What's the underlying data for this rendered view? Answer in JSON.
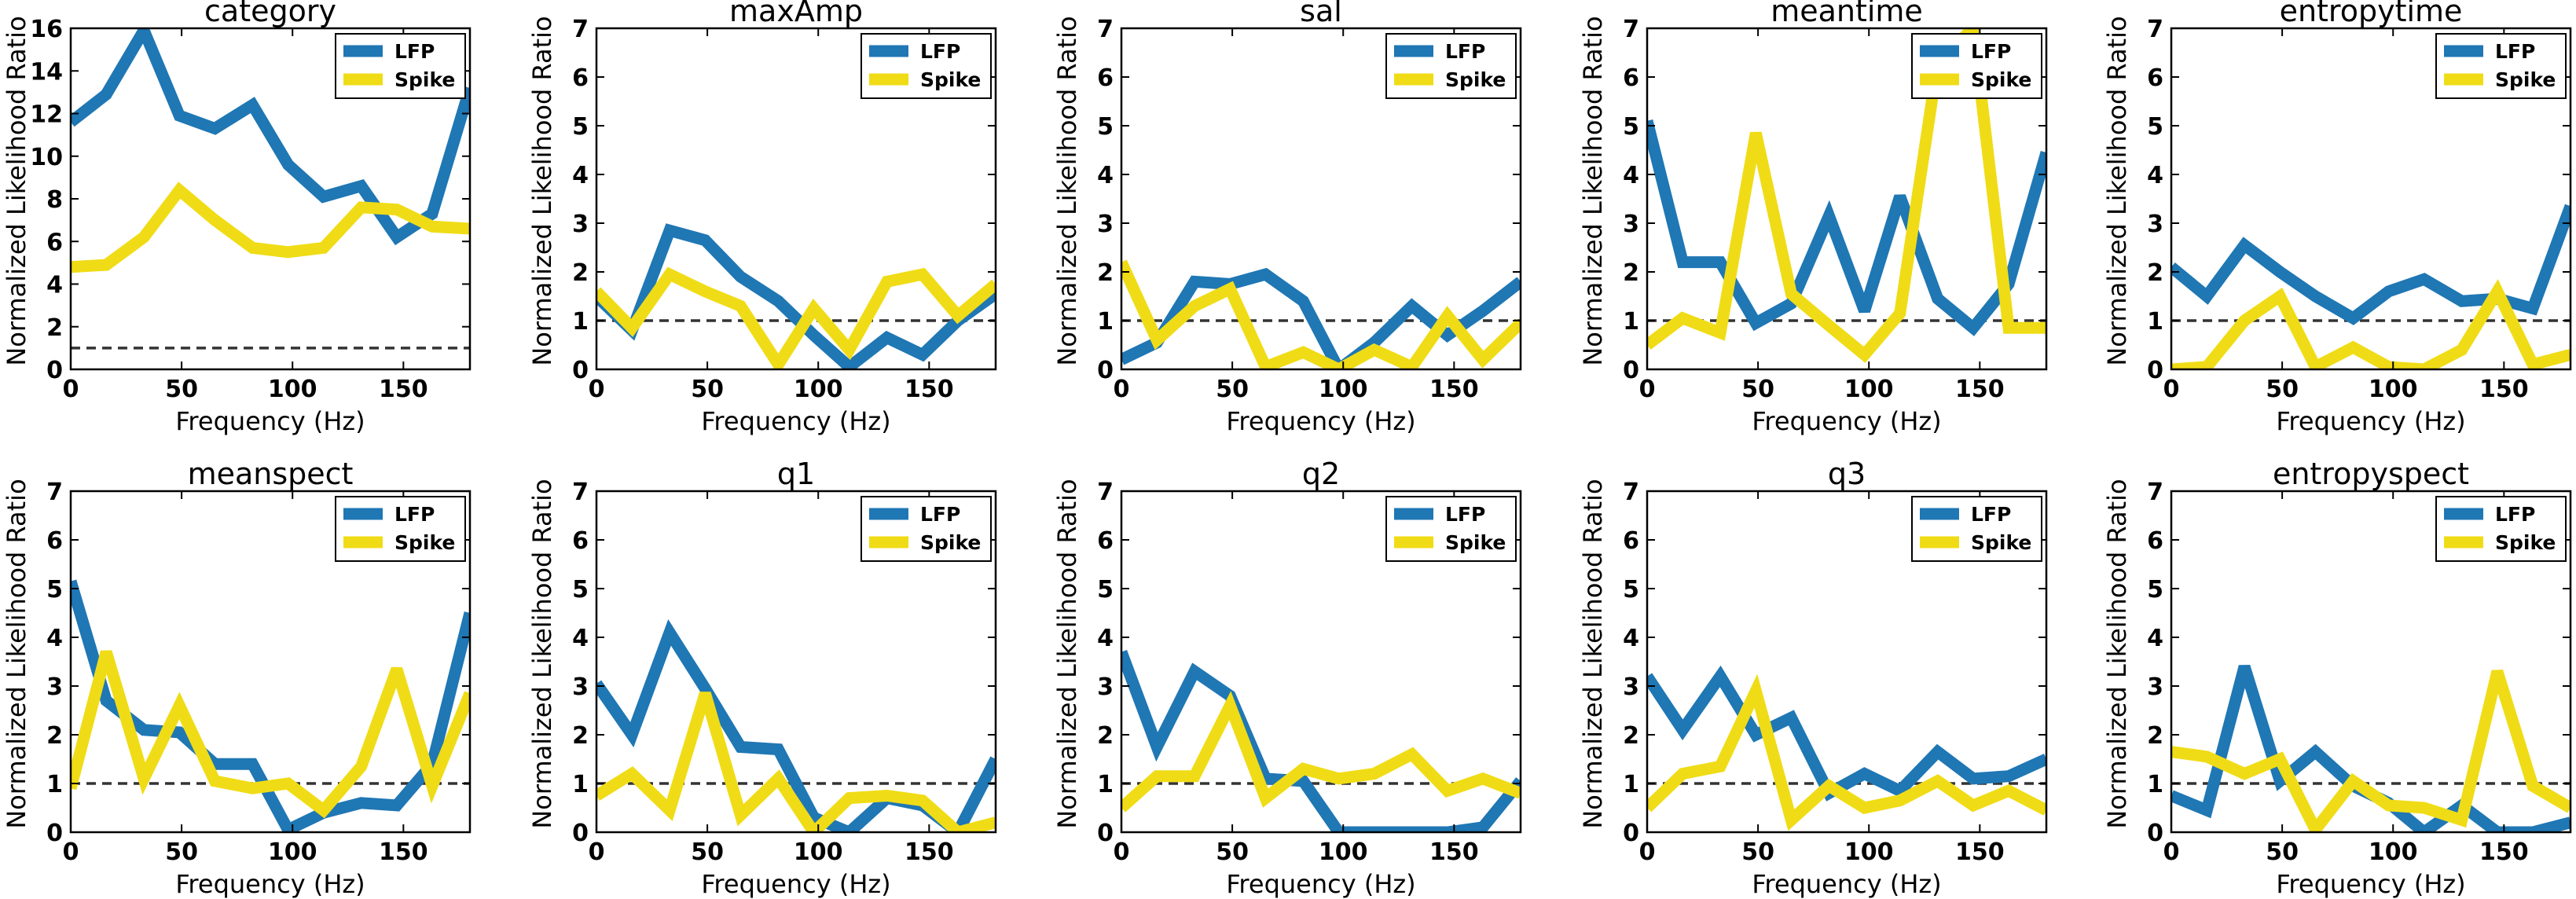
{
  "figure": {
    "ylabel": "Normalized Likelihood Ratio",
    "xlabel": "Frequency (Hz)",
    "reference_line": {
      "y": 1,
      "style": "dashed",
      "color": "#333333"
    },
    "series_styles": [
      {
        "name": "LFP",
        "color": "#1f77b4"
      },
      {
        "name": "Spike",
        "color": "#f0dc16"
      }
    ],
    "legend_placement": "top-right"
  },
  "chart_data": [
    {
      "type": "line",
      "title": "category",
      "xlabel": "Frequency (Hz)",
      "ylabel": "Normalized Likelihood Ratio",
      "xlim": [
        0,
        180
      ],
      "ylim": [
        0,
        16
      ],
      "xticks": [
        0,
        50,
        100,
        150
      ],
      "yticks": [
        0,
        2,
        4,
        6,
        8,
        10,
        12,
        14,
        16
      ],
      "x": [
        0,
        16,
        33,
        49,
        65,
        82,
        98,
        114,
        131,
        147,
        163,
        180
      ],
      "series": [
        {
          "name": "LFP",
          "values": [
            11.6,
            12.9,
            15.9,
            11.9,
            11.3,
            12.4,
            9.6,
            8.1,
            8.6,
            6.2,
            7.3,
            13.2
          ]
        },
        {
          "name": "Spike",
          "values": [
            4.8,
            4.9,
            6.2,
            8.4,
            7.0,
            5.7,
            5.5,
            5.7,
            7.6,
            7.5,
            6.7,
            6.6
          ]
        }
      ],
      "grid": false,
      "legend": "top-right"
    },
    {
      "type": "line",
      "title": "maxAmp",
      "xlabel": "Frequency (Hz)",
      "ylabel": "Normalized Likelihood Ratio",
      "xlim": [
        0,
        180
      ],
      "ylim": [
        0,
        7
      ],
      "xticks": [
        0,
        50,
        100,
        150
      ],
      "yticks": [
        0,
        1,
        2,
        3,
        4,
        5,
        6,
        7
      ],
      "x": [
        0,
        16,
        33,
        49,
        65,
        82,
        98,
        114,
        131,
        147,
        163,
        180
      ],
      "series": [
        {
          "name": "LFP",
          "values": [
            1.5,
            0.8,
            2.85,
            2.65,
            1.9,
            1.4,
            0.7,
            0.05,
            0.65,
            0.3,
            1.0,
            1.55
          ]
        },
        {
          "name": "Spike",
          "values": [
            1.6,
            0.85,
            1.95,
            1.6,
            1.3,
            0.1,
            1.25,
            0.4,
            1.8,
            1.95,
            1.1,
            1.75
          ]
        }
      ],
      "grid": false,
      "legend": "top-right"
    },
    {
      "type": "line",
      "title": "sal",
      "xlabel": "Frequency (Hz)",
      "ylabel": "Normalized Likelihood Ratio",
      "xlim": [
        0,
        180
      ],
      "ylim": [
        0,
        7
      ],
      "xticks": [
        0,
        50,
        100,
        150
      ],
      "yticks": [
        0,
        1,
        2,
        3,
        4,
        5,
        6,
        7
      ],
      "x": [
        0,
        16,
        33,
        49,
        65,
        82,
        98,
        114,
        131,
        147,
        163,
        180
      ],
      "series": [
        {
          "name": "LFP",
          "values": [
            0.2,
            0.55,
            1.8,
            1.75,
            1.95,
            1.4,
            0.0,
            0.55,
            1.3,
            0.7,
            1.2,
            1.8
          ]
        },
        {
          "name": "Spike",
          "values": [
            2.2,
            0.6,
            1.3,
            1.65,
            0.05,
            0.35,
            0.0,
            0.4,
            0.05,
            1.1,
            0.2,
            0.95
          ]
        }
      ],
      "grid": false,
      "legend": "top-right"
    },
    {
      "type": "line",
      "title": "meantime",
      "xlabel": "Frequency (Hz)",
      "ylabel": "Normalized Likelihood Ratio",
      "xlim": [
        0,
        180
      ],
      "ylim": [
        0,
        7
      ],
      "xticks": [
        0,
        50,
        100,
        150
      ],
      "yticks": [
        0,
        1,
        2,
        3,
        4,
        5,
        6,
        7
      ],
      "x": [
        0,
        16,
        33,
        49,
        65,
        82,
        98,
        114,
        131,
        147,
        163,
        180
      ],
      "series": [
        {
          "name": "LFP",
          "values": [
            5.1,
            2.2,
            2.2,
            0.95,
            1.35,
            3.15,
            1.2,
            3.55,
            1.45,
            0.85,
            1.75,
            4.45
          ]
        },
        {
          "name": "Spike",
          "values": [
            0.5,
            1.05,
            0.75,
            4.85,
            1.55,
            0.9,
            0.3,
            1.15,
            6.3,
            7.0,
            0.85,
            0.85
          ]
        }
      ],
      "grid": false,
      "legend": "top-right"
    },
    {
      "type": "line",
      "title": "entropytime",
      "xlabel": "Frequency (Hz)",
      "ylabel": "Normalized Likelihood Ratio",
      "xlim": [
        0,
        180
      ],
      "ylim": [
        0,
        7
      ],
      "xticks": [
        0,
        50,
        100,
        150
      ],
      "yticks": [
        0,
        1,
        2,
        3,
        4,
        5,
        6,
        7
      ],
      "x": [
        0,
        16,
        33,
        49,
        65,
        82,
        98,
        114,
        131,
        147,
        163,
        180
      ],
      "series": [
        {
          "name": "LFP",
          "values": [
            2.1,
            1.5,
            2.55,
            2.0,
            1.5,
            1.05,
            1.6,
            1.85,
            1.4,
            1.45,
            1.25,
            3.35
          ]
        },
        {
          "name": "Spike",
          "values": [
            0.0,
            0.05,
            1.0,
            1.5,
            0.05,
            0.45,
            0.05,
            0.0,
            0.4,
            1.6,
            0.1,
            0.3
          ]
        }
      ],
      "grid": false,
      "legend": "top-right"
    },
    {
      "type": "line",
      "title": "meanspect",
      "xlabel": "Frequency (Hz)",
      "ylabel": "Normalized Likelihood Ratio",
      "xlim": [
        0,
        180
      ],
      "ylim": [
        0,
        7
      ],
      "xticks": [
        0,
        50,
        100,
        150
      ],
      "yticks": [
        0,
        1,
        2,
        3,
        4,
        5,
        6,
        7
      ],
      "x": [
        0,
        16,
        33,
        49,
        65,
        82,
        98,
        114,
        131,
        147,
        163,
        180
      ],
      "series": [
        {
          "name": "LFP",
          "values": [
            5.15,
            2.7,
            2.1,
            2.05,
            1.4,
            1.4,
            0.05,
            0.4,
            0.6,
            0.55,
            1.4,
            4.5
          ]
        },
        {
          "name": "Spike",
          "values": [
            0.9,
            3.7,
            1.1,
            2.6,
            1.05,
            0.9,
            1.0,
            0.45,
            1.35,
            3.35,
            0.95,
            2.85
          ]
        }
      ],
      "grid": false,
      "legend": "top-right"
    },
    {
      "type": "line",
      "title": "q1",
      "xlabel": "Frequency (Hz)",
      "ylabel": "Normalized Likelihood Ratio",
      "xlim": [
        0,
        180
      ],
      "ylim": [
        0,
        7
      ],
      "xticks": [
        0,
        50,
        100,
        150
      ],
      "yticks": [
        0,
        1,
        2,
        3,
        4,
        5,
        6,
        7
      ],
      "x": [
        0,
        16,
        33,
        49,
        65,
        82,
        98,
        114,
        131,
        147,
        163,
        180
      ],
      "series": [
        {
          "name": "LFP",
          "values": [
            3.05,
            2.0,
            4.1,
            2.95,
            1.75,
            1.7,
            0.3,
            0.0,
            0.7,
            0.55,
            0.0,
            1.5
          ]
        },
        {
          "name": "Spike",
          "values": [
            0.75,
            1.2,
            0.45,
            2.85,
            0.35,
            1.1,
            0.0,
            0.7,
            0.75,
            0.65,
            0.0,
            0.2
          ]
        }
      ],
      "grid": false,
      "legend": "top-right"
    },
    {
      "type": "line",
      "title": "q2",
      "xlabel": "Frequency (Hz)",
      "ylabel": "Normalized Likelihood Ratio",
      "xlim": [
        0,
        180
      ],
      "ylim": [
        0,
        7
      ],
      "xticks": [
        0,
        50,
        100,
        150
      ],
      "yticks": [
        0,
        1,
        2,
        3,
        4,
        5,
        6,
        7
      ],
      "x": [
        0,
        16,
        33,
        49,
        65,
        82,
        98,
        114,
        131,
        147,
        163,
        180
      ],
      "series": [
        {
          "name": "LFP",
          "values": [
            3.7,
            1.75,
            3.3,
            2.8,
            1.1,
            1.05,
            0.0,
            0.0,
            0.0,
            0.0,
            0.1,
            1.05
          ]
        },
        {
          "name": "Spike",
          "values": [
            0.5,
            1.15,
            1.15,
            2.6,
            0.7,
            1.3,
            1.1,
            1.2,
            1.6,
            0.85,
            1.1,
            0.8
          ]
        }
      ],
      "grid": false,
      "legend": "top-right"
    },
    {
      "type": "line",
      "title": "q3",
      "xlabel": "Frequency (Hz)",
      "ylabel": "Normalized Likelihood Ratio",
      "xlim": [
        0,
        180
      ],
      "ylim": [
        0,
        7
      ],
      "xticks": [
        0,
        50,
        100,
        150
      ],
      "yticks": [
        0,
        1,
        2,
        3,
        4,
        5,
        6,
        7
      ],
      "x": [
        0,
        16,
        33,
        49,
        65,
        82,
        98,
        114,
        131,
        147,
        163,
        180
      ],
      "series": [
        {
          "name": "LFP",
          "values": [
            3.2,
            2.1,
            3.2,
            2.0,
            2.35,
            0.8,
            1.2,
            0.85,
            1.65,
            1.1,
            1.15,
            1.5
          ]
        },
        {
          "name": "Spike",
          "values": [
            0.5,
            1.2,
            1.35,
            2.9,
            0.25,
            0.95,
            0.5,
            0.65,
            1.05,
            0.55,
            0.85,
            0.45
          ]
        }
      ],
      "grid": false,
      "legend": "top-right"
    },
    {
      "type": "line",
      "title": "entropyspect",
      "xlabel": "Frequency (Hz)",
      "ylabel": "Normalized Likelihood Ratio",
      "xlim": [
        0,
        180
      ],
      "ylim": [
        0,
        7
      ],
      "xticks": [
        0,
        50,
        100,
        150
      ],
      "yticks": [
        0,
        1,
        2,
        3,
        4,
        5,
        6,
        7
      ],
      "x": [
        0,
        16,
        33,
        49,
        65,
        82,
        98,
        114,
        131,
        147,
        163,
        180
      ],
      "series": [
        {
          "name": "LFP",
          "values": [
            0.75,
            0.45,
            3.4,
            1.05,
            1.65,
            0.95,
            0.6,
            0.0,
            0.55,
            0.0,
            0.0,
            0.2
          ]
        },
        {
          "name": "Spike",
          "values": [
            1.65,
            1.55,
            1.2,
            1.5,
            0.05,
            1.05,
            0.55,
            0.5,
            0.25,
            3.3,
            0.95,
            0.5
          ]
        }
      ],
      "grid": false,
      "legend": "top-right"
    }
  ]
}
